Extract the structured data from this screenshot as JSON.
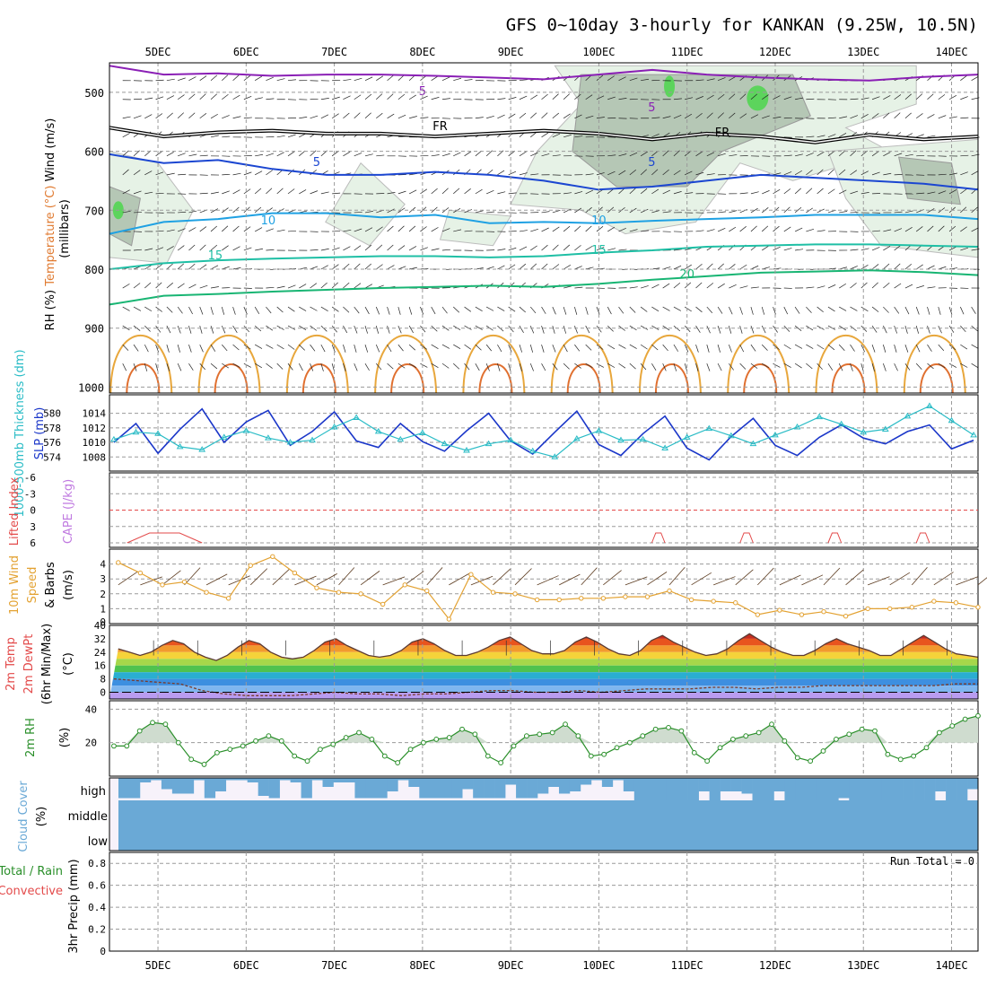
{
  "title": "GFS 0~10day 3-hourly for KANKAN (9.25W, 10.5N)",
  "colors": {
    "grid": "#9a9a9a",
    "rh_fill": "#e6f2e6",
    "rh_dark": "#b5c7b5",
    "rh_green": "#5cd45c",
    "slp": "#1b37c9",
    "thickness": "#2abcc6",
    "wind10": "#e3a232",
    "barbs": "#5b3a1e",
    "rh2m": "#2a8f2a",
    "rh2m_fill": "#cfdccf",
    "cloud": "#6aa9d6",
    "cloud_bg": "#f7f2fa",
    "lifted": "#e34a4a",
    "cape": "#c07ae0"
  },
  "chart_data": [
    {
      "panel": "upper-air",
      "type": "heatmap",
      "x_dates": [
        "5DEC",
        "6DEC",
        "7DEC",
        "8DEC",
        "9DEC",
        "10DEC",
        "11DEC",
        "12DEC",
        "13DEC",
        "14DEC"
      ],
      "ylabel": "(millibars)",
      "ylabels": [
        "Wind (m/s)",
        "Temperature (°C)",
        "RH (%)"
      ],
      "yticks": [
        500,
        600,
        700,
        800,
        900,
        1000
      ],
      "ylim": [
        1000,
        450
      ],
      "isotherm_labels": [
        {
          "text": "FR",
          "day": 8.2
        },
        {
          "text": "FR",
          "day": 11.4
        },
        {
          "text": "5",
          "day": 8.0
        },
        {
          "text": "5",
          "day": 10.6
        },
        {
          "text": "5",
          "day": 6.8
        },
        {
          "text": "5",
          "day": 10.6
        },
        {
          "text": "10",
          "day": 6.25
        },
        {
          "text": "10",
          "day": 10.0
        },
        {
          "text": "15",
          "day": 5.65
        },
        {
          "text": "15",
          "day": 10.0
        },
        {
          "text": "20",
          "day": 11.0
        }
      ],
      "isotherms": [
        {
          "level": "-5",
          "color": "#8a1fb5",
          "p": [
            455,
            470,
            468,
            472,
            470,
            470,
            472,
            475,
            478,
            470,
            462,
            470,
            475,
            478,
            480,
            474,
            470
          ]
        },
        {
          "level": "0",
          "color": "#000000",
          "p": [
            560,
            575,
            568,
            565,
            570,
            570,
            575,
            570,
            565,
            570,
            580,
            570,
            575,
            585,
            572,
            580,
            575
          ]
        },
        {
          "level": "5",
          "color": "#1b46d1",
          "p": [
            605,
            620,
            615,
            630,
            640,
            640,
            635,
            640,
            650,
            665,
            660,
            650,
            640,
            645,
            650,
            655,
            665
          ]
        },
        {
          "level": "10",
          "color": "#1fa1e3",
          "p": [
            740,
            720,
            715,
            705,
            705,
            712,
            708,
            722,
            720,
            722,
            718,
            715,
            712,
            708,
            708,
            708,
            715
          ]
        },
        {
          "level": "15",
          "color": "#1fbfa5",
          "p": [
            800,
            790,
            785,
            782,
            780,
            778,
            778,
            780,
            778,
            772,
            768,
            762,
            760,
            758,
            758,
            760,
            762
          ]
        },
        {
          "level": "20",
          "color": "#18b573",
          "p": [
            860,
            845,
            842,
            838,
            835,
            832,
            830,
            828,
            830,
            825,
            818,
            812,
            806,
            804,
            802,
            805,
            810
          ]
        }
      ]
    },
    {
      "panel": "slp-thickness",
      "type": "line",
      "x": [
        4.5,
        4.75,
        5.0,
        5.25,
        5.5,
        5.75,
        6.0,
        6.25,
        6.5,
        6.75,
        7.0,
        7.25,
        7.5,
        7.75,
        8.0,
        8.25,
        8.5,
        8.75,
        9.0,
        9.25,
        9.5,
        9.75,
        10.0,
        10.25,
        10.5,
        10.75,
        11.0,
        11.25,
        11.5,
        11.75,
        12.0,
        12.25,
        12.5,
        12.75,
        13.0,
        13.25,
        13.5,
        13.75,
        14.0,
        14.25
      ],
      "ylabel_left": "1000-500mb Thickness (dm)",
      "ylabel_right": "SLP (mb)",
      "yticks_thickness": [
        574,
        576,
        578,
        580
      ],
      "yticks_slp": [
        1008,
        1010,
        1012,
        1014
      ],
      "series": [
        {
          "name": "SLP (mb)",
          "axis": "right",
          "values": [
            1010,
            1012.6,
            1008.5,
            1011.8,
            1014.6,
            1010,
            1012.8,
            1014.4,
            1009.6,
            1011.5,
            1014.2,
            1010.2,
            1009.3,
            1012.6,
            1010.1,
            1008.8,
            1011.6,
            1014,
            1010.2,
            1008.4,
            1011.4,
            1014.3,
            1009.7,
            1008.2,
            1011.2,
            1013.6,
            1009.2,
            1007.6,
            1010.8,
            1013.3,
            1009.6,
            1008.2,
            1010.7,
            1012.4,
            1010.6,
            1009.8,
            1011.5,
            1012.4,
            1009.1,
            1010.3
          ]
        },
        {
          "name": "1000-500mb Thickness (dm)",
          "axis": "left",
          "values": [
            576.4,
            577.4,
            577.2,
            575.4,
            575.0,
            576.7,
            577.6,
            576.6,
            576.0,
            576.3,
            578.1,
            579.4,
            577.5,
            576.4,
            577.3,
            575.8,
            574.9,
            575.8,
            576.3,
            574.8,
            574.0,
            576.5,
            577.6,
            576.3,
            576.4,
            575.2,
            576.7,
            577.9,
            576.9,
            575.8,
            577.0,
            578.1,
            579.5,
            578.5,
            577.4,
            577.8,
            579.6,
            581.0,
            579.0,
            577.0
          ]
        }
      ]
    },
    {
      "panel": "lifted-cape",
      "type": "line",
      "ylabels": [
        "Lifted Index",
        "CAPE (J/kg)"
      ],
      "yticks": [
        "-6",
        "-3",
        "0",
        "3",
        "6"
      ],
      "ylim": [
        6,
        -6
      ],
      "series": [
        {
          "name": "Lifted Index",
          "segments": [
            [
              4.65,
              5.5
            ],
            [
              10.6,
              10.75
            ],
            [
              11.6,
              11.75
            ],
            [
              12.6,
              12.75
            ],
            [
              13.6,
              13.75
            ]
          ],
          "value": 6
        }
      ]
    },
    {
      "panel": "wind10",
      "type": "line",
      "ylabels": [
        "10m Wind",
        "Speed",
        "& Barbs",
        "(m/s)"
      ],
      "yticks": [
        1,
        2,
        3,
        4
      ],
      "ylim": [
        0,
        5
      ],
      "series": [
        {
          "name": "10m Wind Speed",
          "values": [
            4.1,
            3.4,
            2.6,
            2.8,
            2.1,
            1.7,
            3.9,
            4.5,
            3.4,
            2.4,
            2.1,
            2.0,
            1.3,
            2.6,
            2.2,
            0.3,
            3.3,
            2.1,
            2.0,
            1.6,
            1.6,
            1.7,
            1.7,
            1.8,
            1.8,
            2.2,
            1.6,
            1.5,
            1.4,
            0.6,
            0.9,
            0.6,
            0.8,
            0.5,
            1.0,
            1.0,
            1.1,
            1.5,
            1.4,
            1.1
          ]
        }
      ]
    },
    {
      "panel": "temp2m",
      "type": "area",
      "ylabels": [
        "2m Temp",
        "2m DewPt",
        "(6hr Min/Max)",
        "(°C)"
      ],
      "yticks": [
        0,
        8,
        16,
        24,
        32,
        40
      ],
      "ylim": [
        -4,
        40
      ],
      "series": [
        {
          "name": "2m Temp",
          "values": [
            26,
            24,
            22,
            24,
            28,
            31,
            29,
            24,
            21,
            19,
            22,
            27,
            31,
            29,
            24,
            21,
            20,
            21,
            25,
            30,
            32,
            28,
            25,
            22,
            21,
            22,
            25,
            30,
            32,
            29,
            25,
            22,
            22,
            24,
            27,
            31,
            33,
            29,
            25,
            23,
            23,
            25,
            30,
            33,
            30,
            26,
            23,
            22,
            25,
            31,
            34,
            30,
            27,
            24,
            22,
            23,
            26,
            31,
            35,
            31,
            27,
            24,
            22,
            22,
            25,
            29,
            32,
            29,
            27,
            25,
            22,
            22,
            26,
            30,
            34,
            30,
            26,
            23,
            22,
            21
          ]
        },
        {
          "name": "2m DewPt",
          "values": [
            8,
            7,
            6,
            5,
            1,
            -1,
            -2,
            -2,
            -2,
            -1,
            0,
            -1,
            -1,
            -2,
            -1,
            -1,
            0,
            1,
            1,
            0,
            0,
            1,
            0,
            1,
            2,
            2,
            2,
            3,
            3,
            2,
            3,
            3,
            4,
            4,
            4,
            4,
            4,
            4,
            5,
            5
          ]
        }
      ]
    },
    {
      "panel": "rh2m",
      "type": "area",
      "ylabels": [
        "2m RH",
        "(%)"
      ],
      "yticks": [
        20,
        40
      ],
      "ylim": [
        0,
        45
      ],
      "series": [
        {
          "name": "2m RH",
          "values": [
            18,
            18,
            27,
            32,
            31,
            20,
            10,
            7,
            14,
            16,
            18,
            21,
            24,
            21,
            12,
            9,
            16,
            19,
            23,
            26,
            22,
            12,
            8,
            16,
            20,
            22,
            23,
            28,
            25,
            12,
            8,
            18,
            24,
            25,
            26,
            31,
            24,
            12,
            13,
            17,
            20,
            24,
            28,
            29,
            27,
            14,
            9,
            17,
            22,
            24,
            26,
            31,
            21,
            11,
            9,
            15,
            22,
            25,
            28,
            27,
            13,
            10,
            12,
            17,
            26,
            30,
            34,
            36
          ]
        }
      ]
    },
    {
      "panel": "cloud",
      "type": "bar",
      "ylabels": [
        "Cloud Cover",
        "(%)"
      ],
      "yticks": [
        "high",
        "middle",
        "low"
      ],
      "series": [
        {
          "name": "high",
          "values": [
            0.9,
            0.9,
            0.2,
            0.1,
            0.5,
            0.7,
            0.7,
            0.1,
            0.9,
            0.6,
            0.1,
            0.1,
            0.2,
            0.8,
            0.9,
            0.1,
            0.2,
            0.9,
            0.1,
            0.4,
            0.2,
            0.2,
            0.9,
            0.9,
            0.9,
            0.6,
            0.1,
            0.4,
            0.9,
            0.9,
            0.9,
            0.9,
            0.5,
            0.9,
            0.9,
            0.9,
            0.3,
            0.9,
            0.9,
            0.7,
            0.4,
            0.7,
            0.6,
            0.3,
            0.1,
            0.4,
            0.1,
            0.6,
            1.0,
            1.0,
            1.0,
            1.0,
            1.0,
            1.0,
            0.6,
            1.0,
            0.6,
            0.6,
            0.7,
            1.0,
            1.0,
            0.6,
            1.0,
            1.0,
            1.0,
            1.0,
            1.0,
            0.9,
            1.0,
            1.0,
            1.0,
            1.0,
            1.0,
            1.0,
            1.0,
            1.0,
            0.6,
            1.0,
            1.0,
            0.5
          ]
        }
      ]
    },
    {
      "panel": "precip",
      "type": "bar",
      "ylabels": [
        "3hr Precip (mm)"
      ],
      "legend": [
        "Total / Rain",
        "Convective"
      ],
      "annotation": "Run Total = 0",
      "yticks": [
        "0",
        "0.2",
        "0.4",
        "0.6",
        "0.8"
      ],
      "ylim": [
        0,
        0.9
      ],
      "series": []
    }
  ]
}
